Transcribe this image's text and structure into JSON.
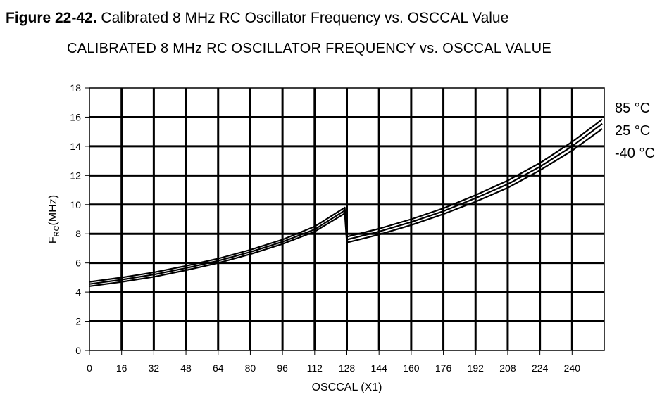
{
  "figure": {
    "label": "Figure 22-42.",
    "caption": "Calibrated 8 MHz RC Oscillator Frequency vs. OSCCAL Value"
  },
  "chart_data": {
    "type": "line",
    "title": "CALIBRATED 8 MHz RC OSCILLATOR FREQUENCY vs. OSCCAL VALUE",
    "xlabel": "OSCCAL (X1)",
    "ylabel_main": "F",
    "ylabel_sub": "RC",
    "ylabel_unit": "(MHz)",
    "xlim": [
      0,
      256
    ],
    "ylim": [
      0,
      18
    ],
    "xticks": [
      0,
      16,
      32,
      48,
      64,
      80,
      96,
      112,
      128,
      144,
      160,
      176,
      192,
      208,
      224,
      240
    ],
    "yticks": [
      0,
      2,
      4,
      6,
      8,
      10,
      12,
      14,
      16,
      18
    ],
    "grid": true,
    "legend_position": "right",
    "series": [
      {
        "name": "85 °C",
        "x": [
          0,
          16,
          32,
          48,
          64,
          80,
          96,
          112,
          127,
          128,
          144,
          160,
          176,
          192,
          208,
          224,
          240,
          255
        ],
        "y": [
          4.55,
          4.85,
          5.2,
          5.65,
          6.15,
          6.75,
          7.45,
          8.3,
          9.6,
          7.6,
          8.15,
          8.8,
          9.55,
          10.45,
          11.4,
          12.6,
          14.0,
          15.55
        ]
      },
      {
        "name": "25 °C",
        "x": [
          0,
          16,
          32,
          48,
          64,
          80,
          96,
          112,
          127,
          128,
          144,
          160,
          176,
          192,
          208,
          224,
          240,
          255
        ],
        "y": [
          4.7,
          5.0,
          5.35,
          5.8,
          6.3,
          6.9,
          7.6,
          8.5,
          9.8,
          7.8,
          8.35,
          9.0,
          9.75,
          10.65,
          11.65,
          12.85,
          14.3,
          15.85
        ]
      },
      {
        "name": "-40 °C",
        "x": [
          0,
          16,
          32,
          48,
          64,
          80,
          96,
          112,
          127,
          128,
          144,
          160,
          176,
          192,
          208,
          224,
          240,
          255
        ],
        "y": [
          4.4,
          4.7,
          5.05,
          5.5,
          6.0,
          6.6,
          7.3,
          8.15,
          9.4,
          7.4,
          7.95,
          8.6,
          9.35,
          10.2,
          11.15,
          12.35,
          13.7,
          15.2
        ]
      }
    ]
  }
}
